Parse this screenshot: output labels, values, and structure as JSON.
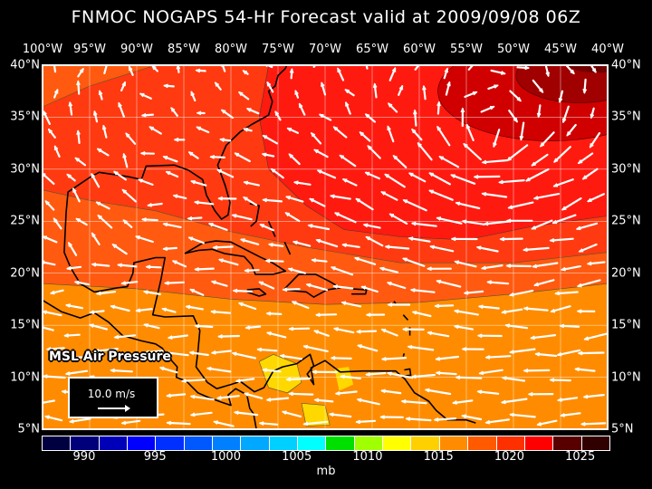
{
  "title": "FNMOC NOGAPS 54-Hr Forecast valid at 2009/09/08 06Z",
  "lon_labels": [
    "100°W",
    "95°W",
    "90°W",
    "85°W",
    "80°W",
    "75°W",
    "70°W",
    "65°W",
    "60°W",
    "55°W",
    "50°W",
    "45°W",
    "40°W"
  ],
  "lat_labels": [
    "40°N",
    "35°N",
    "30°N",
    "25°N",
    "20°N",
    "15°N",
    "10°N",
    "5°N"
  ],
  "legend": {
    "field": "MSL Air Pressure",
    "reference_vector": "10.0 m/s"
  },
  "colorbar": {
    "labels": [
      "990",
      "995",
      "1000",
      "1005",
      "1010",
      "1015",
      "1020",
      "1025"
    ],
    "units": "mb",
    "colors": [
      "#000040",
      "#00007a",
      "#0000b8",
      "#0000ff",
      "#0030ff",
      "#0058ff",
      "#0080ff",
      "#00a8ff",
      "#00d0ff",
      "#00ffff",
      "#00e000",
      "#a0ff00",
      "#ffff00",
      "#ffd000",
      "#ff8c00",
      "#ff5a00",
      "#ff3000",
      "#ff0000",
      "#ff0000",
      "#c80000",
      "#a00000",
      "#800000",
      "#580000",
      "#300000"
    ]
  },
  "map": {
    "extent": {
      "lon": [
        -100,
        -40
      ],
      "lat": [
        5,
        40
      ]
    },
    "fill_colors": {
      "1010": "#ff8c00",
      "1012": "#ff5a10",
      "1014": "#ff3a10",
      "1016": "#ff1a10",
      "1020": "#d00000",
      "1022": "#a00000",
      "1024": "#700000",
      "1008": "#ffd800"
    },
    "wind_arrow_color": "#ffffff",
    "grid": true
  }
}
